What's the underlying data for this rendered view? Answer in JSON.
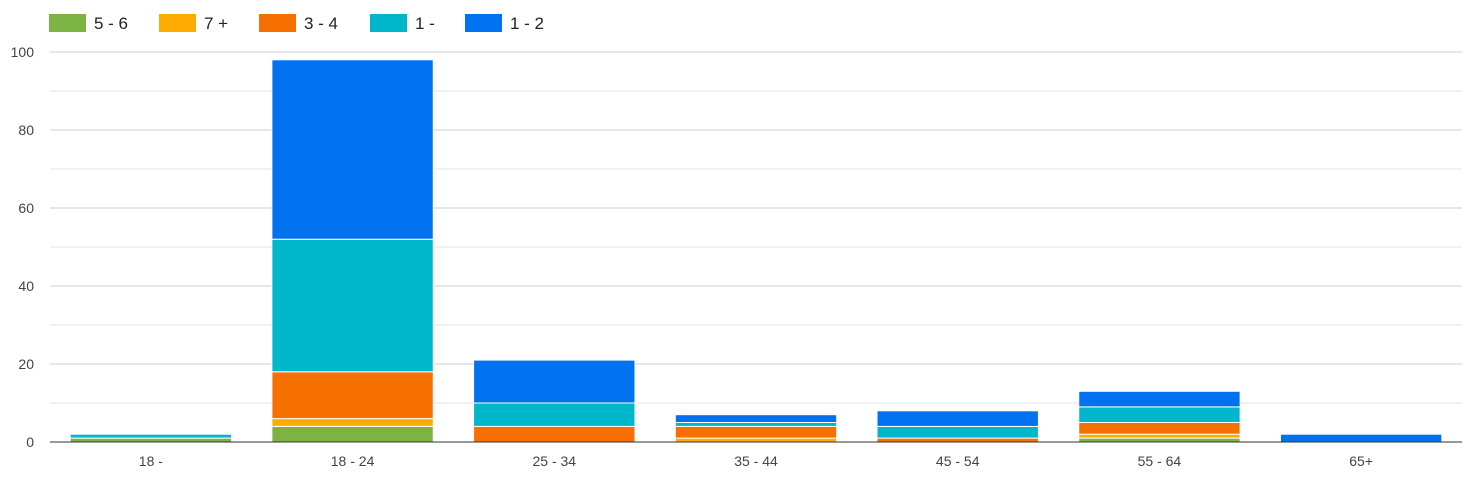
{
  "chart_data": {
    "type": "bar",
    "stacked": true,
    "categories": [
      "18 -",
      "18 - 24",
      "25 - 34",
      "35 - 44",
      "45 - 54",
      "55 - 64",
      "65+"
    ],
    "series": [
      {
        "name": "5 - 6",
        "color": "#7cb342",
        "values": [
          1,
          4,
          0,
          0,
          0,
          1,
          0
        ]
      },
      {
        "name": "7 +",
        "color": "#ffab00",
        "values": [
          0,
          2,
          0,
          1,
          0,
          1,
          0
        ]
      },
      {
        "name": "3 - 4",
        "color": "#f57000",
        "values": [
          0,
          12,
          4,
          3,
          1,
          3,
          0
        ]
      },
      {
        "name": "1 -",
        "color": "#00b6cb",
        "values": [
          1,
          34,
          6,
          1,
          3,
          4,
          0
        ]
      },
      {
        "name": "1 - 2",
        "color": "#0072f0",
        "values": [
          0,
          46,
          11,
          2,
          4,
          4,
          2
        ]
      }
    ],
    "yticks": [
      "0",
      "20",
      "40",
      "60",
      "80",
      "100"
    ],
    "ylim": [
      0,
      100
    ],
    "grid": true,
    "legend_position": "top-left"
  }
}
